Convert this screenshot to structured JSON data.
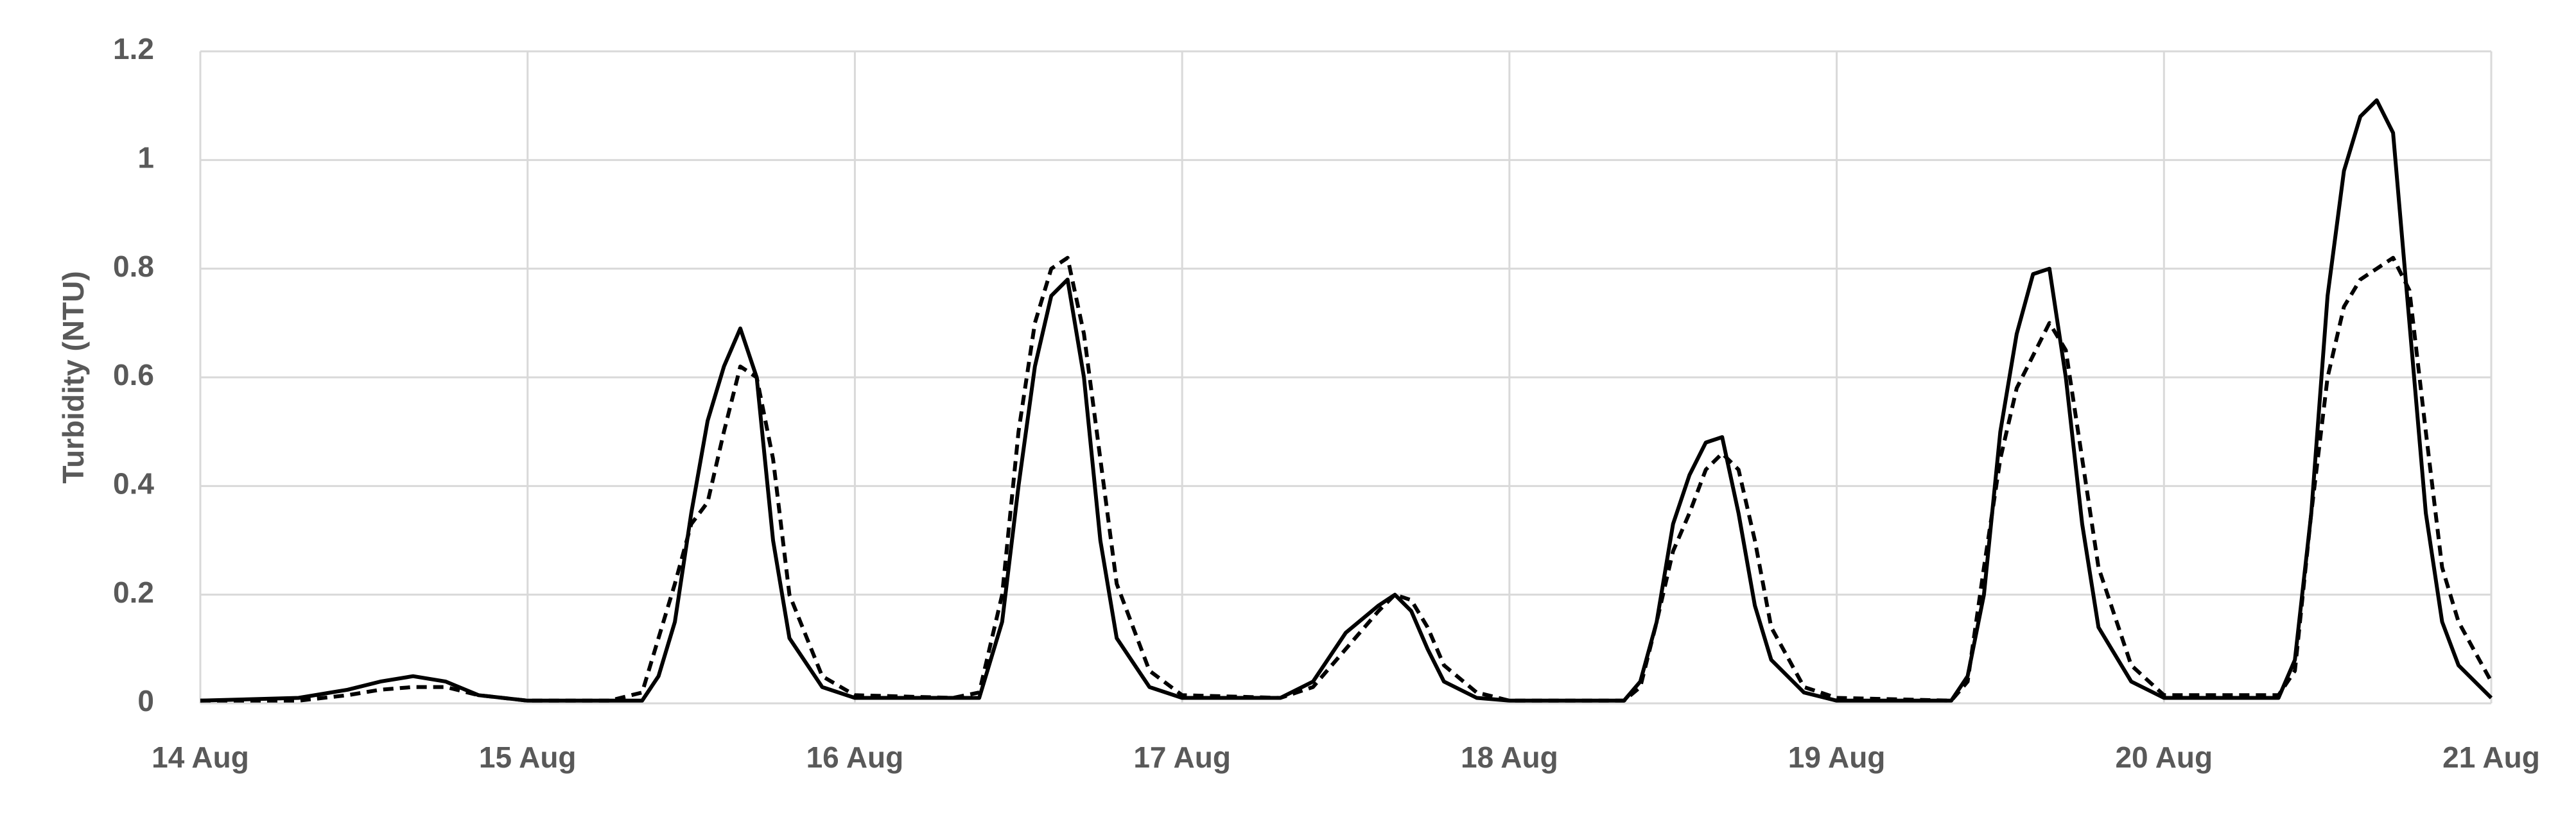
{
  "chart_data": {
    "type": "line",
    "ylabel": "Turbidity (NTU)",
    "xlim": [
      0,
      7
    ],
    "ylim": [
      0,
      1.2
    ],
    "xticks": [
      {
        "value": 0,
        "label": "14 Aug"
      },
      {
        "value": 1,
        "label": "15 Aug"
      },
      {
        "value": 2,
        "label": "16 Aug"
      },
      {
        "value": 3,
        "label": "17 Aug"
      },
      {
        "value": 4,
        "label": "18 Aug"
      },
      {
        "value": 5,
        "label": "19 Aug"
      },
      {
        "value": 6,
        "label": "20 Aug"
      },
      {
        "value": 7,
        "label": "21 Aug"
      }
    ],
    "yticks": [
      0,
      0.2,
      0.4,
      0.6,
      0.8,
      1,
      1.2
    ],
    "grid": true,
    "x": [
      0,
      0.3,
      0.45,
      0.55,
      0.65,
      0.75,
      0.85,
      1.0,
      1.25,
      1.35,
      1.4,
      1.45,
      1.5,
      1.55,
      1.6,
      1.65,
      1.7,
      1.75,
      1.8,
      1.9,
      2.0,
      2.3,
      2.38,
      2.45,
      2.5,
      2.55,
      2.6,
      2.65,
      2.7,
      2.75,
      2.8,
      2.9,
      3.0,
      3.3,
      3.4,
      3.5,
      3.6,
      3.65,
      3.7,
      3.75,
      3.8,
      3.9,
      4.0,
      4.35,
      4.4,
      4.45,
      4.5,
      4.55,
      4.6,
      4.65,
      4.7,
      4.75,
      4.8,
      4.9,
      5.0,
      5.35,
      5.4,
      5.45,
      5.5,
      5.55,
      5.6,
      5.65,
      5.7,
      5.75,
      5.8,
      5.9,
      6.0,
      6.35,
      6.4,
      6.45,
      6.5,
      6.55,
      6.6,
      6.65,
      6.7,
      6.75,
      6.8,
      6.85,
      6.9,
      7.0
    ],
    "series": [
      {
        "color": "#000000",
        "style": "solid",
        "values": [
          0.005,
          0.01,
          0.025,
          0.04,
          0.05,
          0.04,
          0.015,
          0.005,
          0.005,
          0.005,
          0.05,
          0.15,
          0.35,
          0.52,
          0.62,
          0.69,
          0.6,
          0.3,
          0.12,
          0.03,
          0.01,
          0.01,
          0.01,
          0.15,
          0.4,
          0.62,
          0.75,
          0.78,
          0.6,
          0.3,
          0.12,
          0.03,
          0.01,
          0.01,
          0.04,
          0.13,
          0.18,
          0.2,
          0.17,
          0.1,
          0.04,
          0.01,
          0.005,
          0.005,
          0.04,
          0.15,
          0.33,
          0.42,
          0.48,
          0.49,
          0.35,
          0.18,
          0.08,
          0.02,
          0.005,
          0.005,
          0.05,
          0.2,
          0.5,
          0.68,
          0.79,
          0.8,
          0.6,
          0.33,
          0.14,
          0.04,
          0.01,
          0.01,
          0.08,
          0.35,
          0.75,
          0.98,
          1.08,
          1.11,
          1.05,
          0.7,
          0.35,
          0.15,
          0.07,
          0.01
        ]
      },
      {
        "color": "#000000",
        "style": "dashed",
        "values": [
          0.005,
          0.005,
          0.015,
          0.025,
          0.03,
          0.03,
          0.015,
          0.005,
          0.005,
          0.02,
          0.12,
          0.22,
          0.33,
          0.37,
          0.5,
          0.62,
          0.6,
          0.45,
          0.2,
          0.05,
          0.015,
          0.01,
          0.02,
          0.2,
          0.5,
          0.7,
          0.8,
          0.82,
          0.68,
          0.45,
          0.22,
          0.06,
          0.015,
          0.01,
          0.03,
          0.1,
          0.17,
          0.2,
          0.19,
          0.14,
          0.07,
          0.02,
          0.005,
          0.005,
          0.03,
          0.15,
          0.28,
          0.35,
          0.43,
          0.46,
          0.43,
          0.3,
          0.14,
          0.03,
          0.01,
          0.005,
          0.04,
          0.25,
          0.45,
          0.58,
          0.64,
          0.7,
          0.65,
          0.45,
          0.25,
          0.07,
          0.015,
          0.015,
          0.06,
          0.35,
          0.6,
          0.73,
          0.78,
          0.8,
          0.82,
          0.76,
          0.5,
          0.25,
          0.15,
          0.04
        ]
      }
    ]
  }
}
